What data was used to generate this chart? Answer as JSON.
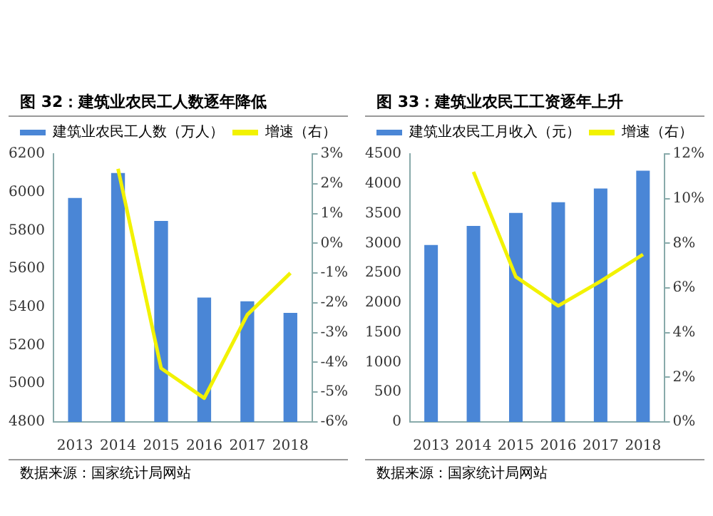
{
  "chart_data": [
    {
      "type": "bar",
      "title": "图 32：建筑业农民工人数逐年降低",
      "categories": [
        "2013",
        "2014",
        "2015",
        "2016",
        "2017",
        "2018"
      ],
      "series": [
        {
          "name": "建筑业农民工人数（万人）",
          "color": "#4a86d6",
          "values": [
            5970,
            6100,
            5850,
            5450,
            5430,
            5370
          ]
        },
        {
          "name": "增速（右）",
          "type": "line",
          "axis": "y2",
          "color": "#f2f200",
          "values": [
            null,
            2.5,
            -4.2,
            -5.2,
            -2.4,
            -1.0
          ]
        }
      ],
      "ylim": [
        4800,
        6200
      ],
      "yticks": [
        4800,
        5000,
        5200,
        5400,
        5600,
        5800,
        6000,
        6200
      ],
      "y2lim": [
        -6,
        3
      ],
      "y2ticks": [
        {
          "value": -6,
          "label": "-6%"
        },
        {
          "value": -5,
          "label": "-5%"
        },
        {
          "value": -4,
          "label": "-4%"
        },
        {
          "value": -3,
          "label": "-3%"
        },
        {
          "value": -2,
          "label": "-2%"
        },
        {
          "value": -1,
          "label": "-1%"
        },
        {
          "value": 0,
          "label": "0%"
        },
        {
          "value": 1,
          "label": "1%"
        },
        {
          "value": 2,
          "label": "2%"
        },
        {
          "value": 3,
          "label": "3%"
        }
      ],
      "grid": false,
      "legend": "top",
      "marker": "none",
      "annotations": [
        "数据来源：国家统计局网站"
      ]
    },
    {
      "type": "bar",
      "title": "图 33：建筑业农民工工资逐年上升",
      "categories": [
        "2013",
        "2014",
        "2015",
        "2016",
        "2017",
        "2018"
      ],
      "series": [
        {
          "name": "建筑业农民工月收入（元）",
          "color": "#4a86d6",
          "values": [
            2970,
            3290,
            3510,
            3690,
            3920,
            4220
          ]
        },
        {
          "name": "增速（右）",
          "type": "line",
          "axis": "y2",
          "color": "#f2f200",
          "values": [
            null,
            11.2,
            6.5,
            5.2,
            6.3,
            7.5
          ]
        }
      ],
      "ylim": [
        0,
        4500
      ],
      "yticks": [
        0,
        500,
        1000,
        1500,
        2000,
        2500,
        3000,
        3500,
        4000,
        4500
      ],
      "y2lim": [
        0,
        12
      ],
      "y2ticks": [
        {
          "value": 0,
          "label": "0%"
        },
        {
          "value": 2,
          "label": "2%"
        },
        {
          "value": 4,
          "label": "4%"
        },
        {
          "value": 6,
          "label": "6%"
        },
        {
          "value": 8,
          "label": "8%"
        },
        {
          "value": 10,
          "label": "10%"
        },
        {
          "value": 12,
          "label": "12%"
        }
      ],
      "grid": false,
      "legend": "top",
      "marker": "none",
      "annotations": [
        "数据来源：国家统计局网站"
      ]
    }
  ]
}
